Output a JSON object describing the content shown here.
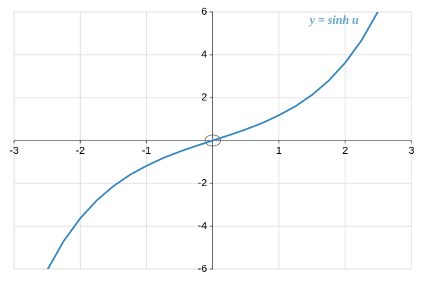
{
  "chart_data": {
    "type": "line",
    "annotation": "y = sinh u",
    "x": [
      -2.5,
      -2.25,
      -2,
      -1.75,
      -1.5,
      -1.25,
      -1,
      -0.75,
      -0.5,
      -0.25,
      0,
      0.25,
      0.5,
      0.75,
      1,
      1.25,
      1.5,
      1.75,
      2,
      2.25,
      2.5
    ],
    "series": [
      {
        "name": "y = sinh u",
        "color": "#3a87c0",
        "values": [
          -6.05,
          -4.69,
          -3.63,
          -2.79,
          -2.13,
          -1.6,
          -1.18,
          -0.82,
          -0.52,
          -0.25,
          0,
          0.25,
          0.52,
          0.82,
          1.18,
          1.6,
          2.13,
          2.79,
          3.63,
          4.69,
          6.05
        ]
      }
    ],
    "xlim": [
      -3,
      3
    ],
    "xticks": [
      -3,
      -2,
      -1,
      1,
      2,
      3
    ],
    "ylim": [
      -6,
      6
    ],
    "yticks": [
      -6,
      -4,
      -2,
      2,
      4,
      6
    ],
    "grid": true
  }
}
